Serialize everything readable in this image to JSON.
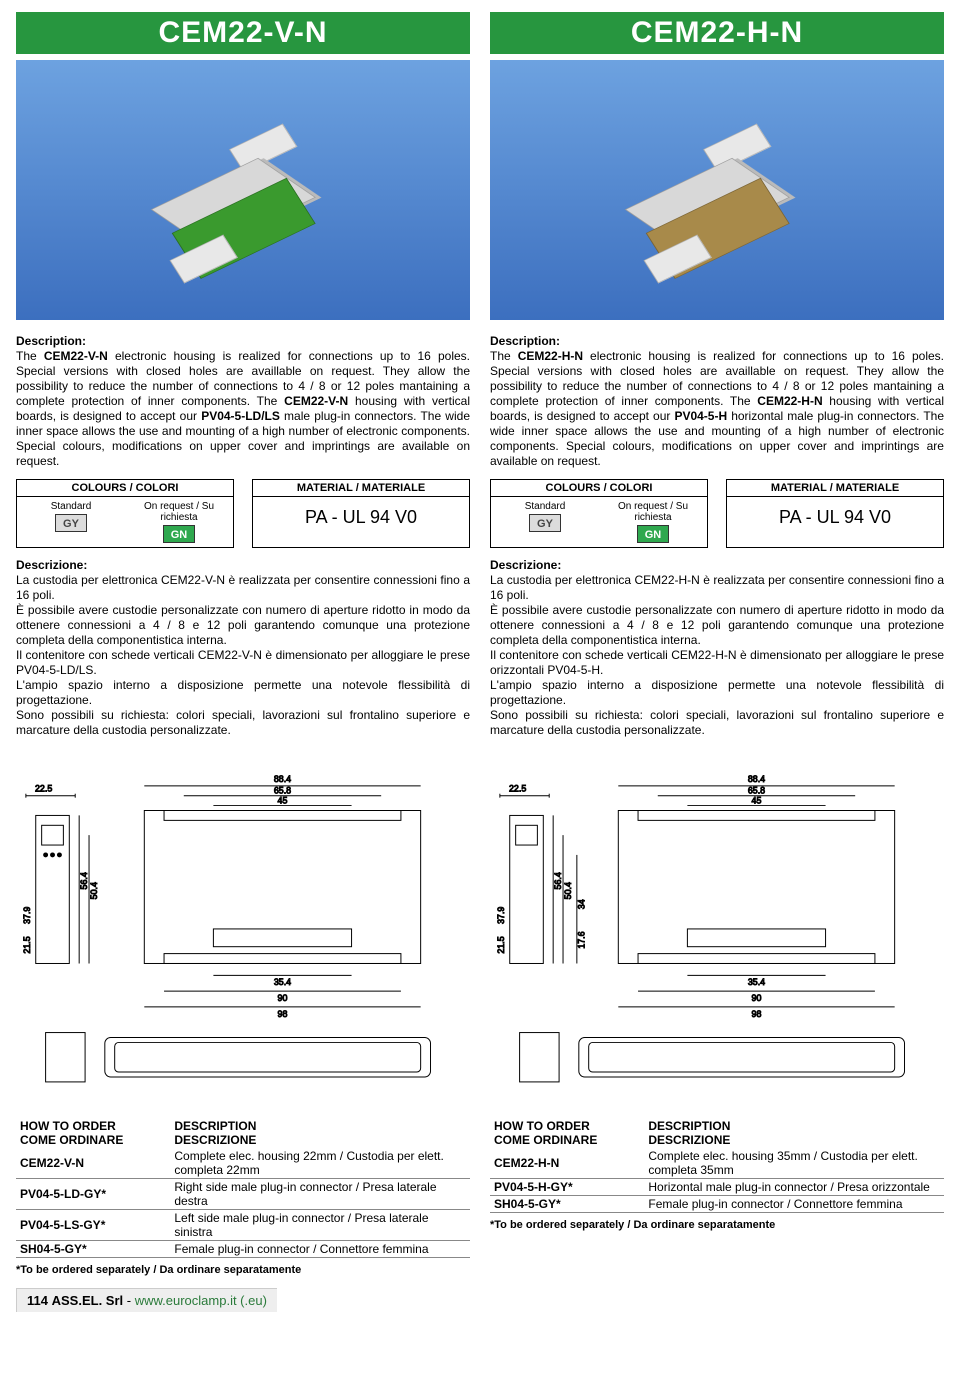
{
  "left": {
    "title": "CEM22-V-N",
    "pcb_color": "#3a9a2e",
    "desc_label": "Description:",
    "desc_lines": [
      {
        "pre": "The ",
        "b": "CEM22-V-N",
        "post": " electronic housing is realized for connections up to 16 poles."
      },
      {
        "pre": "Special versions with closed holes are availlable on request. They allow the possibility to reduce the number of connections to 4 / 8 or 12 poles mantaining a complete protection of inner components.",
        "b": "",
        "post": ""
      },
      {
        "pre": "The ",
        "b": "CEM22-V-N",
        "post": " housing with vertical boards, is designed to accept our "
      },
      {
        "pre": "",
        "b": "PV04-5-LD/LS",
        "post": " male plug-in connectors."
      },
      {
        "pre": "The wide inner space allows the use and mounting of a high number of electronic components.",
        "b": "",
        "post": ""
      },
      {
        "pre": "Special colours, modifications on upper cover and imprintings are available on request.",
        "b": "",
        "post": ""
      }
    ],
    "colours_hdr": "COLOURS / COLORI",
    "colours_std_label": "Standard",
    "colours_std_code": "GY",
    "colours_std_bg": "#dcdcdc",
    "colours_std_fg": "#444444",
    "colours_req_label": "On request / Su richiesta",
    "colours_req_code": "GN",
    "colours_req_bg": "#2fa84f",
    "colours_req_fg": "#ffffff",
    "material_hdr": "MATERIAL / MATERIALE",
    "material_val": "PA - UL 94 V0",
    "descrizione_label": "Descrizione:",
    "descrizione": "La custodia per elettronica CEM22-V-N è realizzata per consentire connessioni fino a 16 poli.\nÈ possibile avere custodie personalizzate con numero di aperture ridotto in modo da ottenere connessioni a 4 / 8 e 12 poli garantendo comunque una protezione completa della componentistica interna.\nIl contenitore con schede verticali CEM22-V-N è dimensionato per alloggiare le prese PV04-5-LD/LS.\nL'ampio spazio interno a disposizione permette una notevole flessibilità di progettazione.\nSono possibili su richiesta: colori speciali, lavorazioni sul frontalino superiore e marcature della custodia personalizzate.",
    "dims": {
      "w_out_top": "88.4",
      "w_mid": "65.8",
      "w_in": "45",
      "depth": "22.5",
      "h1": "56.4",
      "h2": "50.4",
      "h3": "37.9",
      "h4": "21.5",
      "base_w1": "35.4",
      "base_w2": "90",
      "base_w3": "98"
    },
    "order_hdr1a": "HOW TO ORDER",
    "order_hdr1b": "COME ORDINARE",
    "order_hdr2a": "DESCRIPTION",
    "order_hdr2b": "DESCRIZIONE",
    "order_rows": [
      {
        "c": "CEM22-V-N",
        "d": "Complete elec. housing 22mm / Custodia per elett. completa 22mm"
      },
      {
        "c": "PV04-5-LD-GY*",
        "d": "Right side male plug-in connector / Presa laterale destra"
      },
      {
        "c": "PV04-5-LS-GY*",
        "d": "Left side male plug-in connector / Presa laterale sinistra"
      },
      {
        "c": "SH04-5-GY*",
        "d": "Female plug-in connector / Connettore femmina"
      }
    ],
    "order_foot": "*To be ordered separately / Da ordinare separatamente"
  },
  "right": {
    "title": "CEM22-H-N",
    "pcb_color": "#a88a4a",
    "desc_label": "Description:",
    "desc_lines": [
      {
        "pre": "The ",
        "b": "CEM22-H-N",
        "post": " electronic housing is realized for connections up to 16 poles."
      },
      {
        "pre": "Special versions with closed holes are availlable on request. They allow the possibility to reduce the number of connections to 4 / 8 or 12 poles mantaining a complete protection of inner components.",
        "b": "",
        "post": ""
      },
      {
        "pre": "The ",
        "b": "CEM22-H-N",
        "post": " housing with vertical boards, is designed to accept our "
      },
      {
        "pre": "",
        "b": "PV04-5-H",
        "post": " horizontal male plug-in connectors."
      },
      {
        "pre": "The wide inner space allows the use and mounting of a high number of electronic components.",
        "b": "",
        "post": ""
      },
      {
        "pre": "Special colours, modifications on upper cover and imprintings are available on request.",
        "b": "",
        "post": ""
      }
    ],
    "colours_hdr": "COLOURS / COLORI",
    "colours_std_label": "Standard",
    "colours_std_code": "GY",
    "colours_std_bg": "#dcdcdc",
    "colours_std_fg": "#444444",
    "colours_req_label": "On request / Su richiesta",
    "colours_req_code": "GN",
    "colours_req_bg": "#2fa84f",
    "colours_req_fg": "#ffffff",
    "material_hdr": "MATERIAL / MATERIALE",
    "material_val": "PA - UL 94 V0",
    "descrizione_label": "Descrizione:",
    "descrizione": "La custodia per elettronica CEM22-H-N è realizzata per consentire connessioni fino a 16 poli.\nÈ possibile avere custodie personalizzate con numero di aperture ridotto in modo da ottenere connessioni a 4 / 8 e 12 poli garantendo comunque una protezione completa della componentistica interna.\nIl contenitore con schede verticali CEM22-H-N è dimensionato per alloggiare le prese orizzontali PV04-5-H.\nL'ampio spazio interno a disposizione permette una notevole flessibilità di progettazione.\nSono possibili su richiesta: colori speciali, lavorazioni sul frontalino superiore e marcature della custodia personalizzate.",
    "dims": {
      "w_out_top": "88.4",
      "w_mid": "65.8",
      "w_in": "45",
      "depth": "22.5",
      "h1": "56.4",
      "h2": "50.4",
      "h3": "37.9",
      "h4": "21.5",
      "h5": "34",
      "h6": "17.6",
      "base_w1": "35.4",
      "base_w2": "90",
      "base_w3": "98"
    },
    "order_hdr1a": "HOW TO ORDER",
    "order_hdr1b": "COME ORDINARE",
    "order_hdr2a": "DESCRIPTION",
    "order_hdr2b": "DESCRIZIONE",
    "order_rows": [
      {
        "c": "CEM22-H-N",
        "d": "Complete elec. housing 35mm / Custodia per elett. completa 35mm"
      },
      {
        "c": "PV04-5-H-GY*",
        "d": "Horizontal male plug-in connector / Presa orizzontale"
      },
      {
        "c": "SH04-5-GY*",
        "d": "Female plug-in connector / Connettore femmina"
      }
    ],
    "order_foot": "*To be ordered separately / Da ordinare separatamente"
  },
  "footer": {
    "page_no": "114",
    "company": "ASS.EL. Srl",
    "sep": " - ",
    "url": "www.euroclamp.it (.eu)"
  }
}
